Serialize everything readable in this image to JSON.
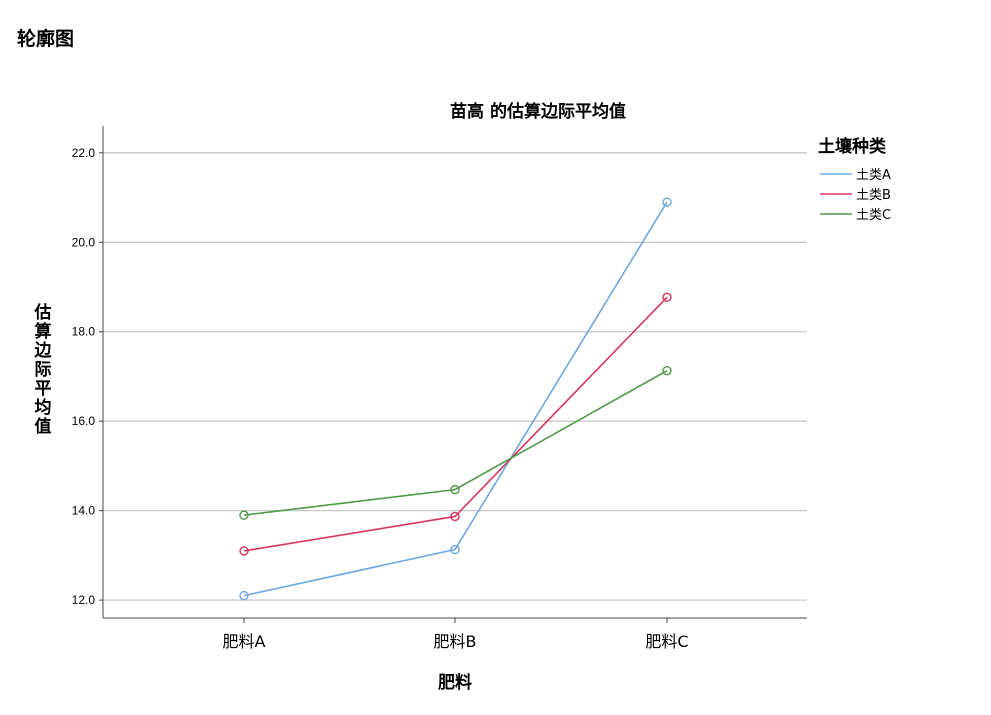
{
  "page": {
    "section_title": "轮廓图"
  },
  "chart_data": {
    "type": "line",
    "title": "苗高 的估算边际平均值",
    "xlabel": "肥料",
    "ylabel": "估算边际平均值",
    "categories": [
      "肥料A",
      "肥料B",
      "肥料C"
    ],
    "ylim": [
      11.6,
      22.6
    ],
    "yticks": [
      12.0,
      14.0,
      16.0,
      18.0,
      20.0,
      22.0
    ],
    "ytick_labels": [
      "12.0",
      "14.0",
      "16.0",
      "18.0",
      "20.0",
      "22.0"
    ],
    "grid": "horizontal",
    "legend": {
      "title": "土壤种类",
      "position": "right"
    },
    "series": [
      {
        "name": "土类A",
        "color": "#6fa8e0",
        "values": [
          12.1,
          13.13,
          20.9
        ]
      },
      {
        "name": "土类B",
        "color": "#d6365e",
        "values": [
          13.1,
          13.87,
          18.77
        ]
      },
      {
        "name": "土类C",
        "color": "#4e9a47",
        "values": [
          13.9,
          14.47,
          17.13
        ]
      }
    ]
  }
}
